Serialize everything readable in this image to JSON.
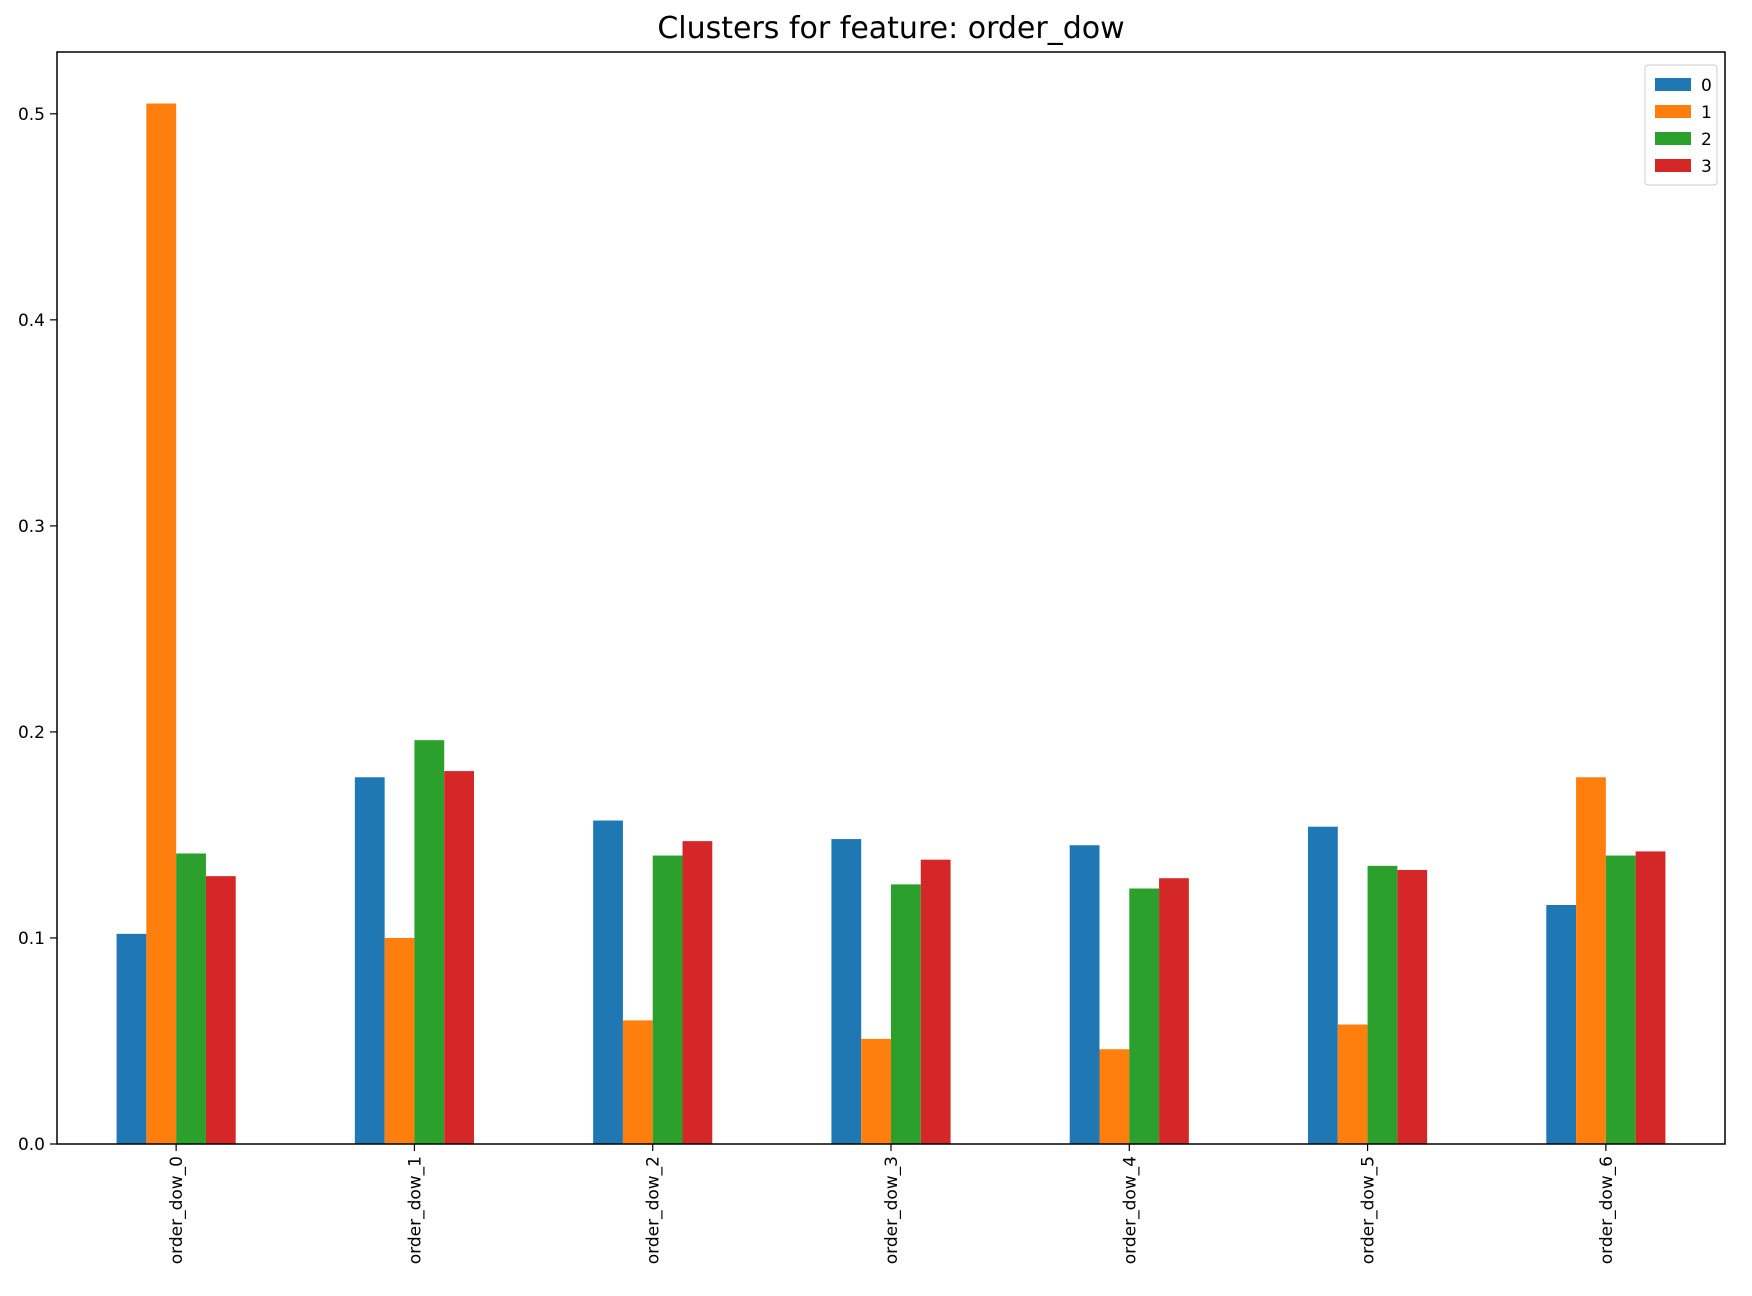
{
  "chart_data": {
    "type": "bar",
    "title": "Clusters for feature: order_dow",
    "xlabel": "",
    "ylabel": "",
    "categories": [
      "order_dow_0",
      "order_dow_1",
      "order_dow_2",
      "order_dow_3",
      "order_dow_4",
      "order_dow_5",
      "order_dow_6"
    ],
    "series": [
      {
        "name": "0",
        "color": "#1f77b4",
        "values": [
          0.102,
          0.178,
          0.157,
          0.148,
          0.145,
          0.154,
          0.116
        ]
      },
      {
        "name": "1",
        "color": "#ff7f0e",
        "values": [
          0.505,
          0.1,
          0.06,
          0.051,
          0.046,
          0.058,
          0.178
        ]
      },
      {
        "name": "2",
        "color": "#2ca02c",
        "values": [
          0.141,
          0.196,
          0.14,
          0.126,
          0.124,
          0.135,
          0.14
        ]
      },
      {
        "name": "3",
        "color": "#d62728",
        "values": [
          0.13,
          0.181,
          0.147,
          0.138,
          0.129,
          0.133,
          0.142
        ]
      }
    ],
    "ylim": [
      0,
      0.53
    ],
    "yticks": [
      0.0,
      0.1,
      0.2,
      0.3,
      0.4,
      0.5
    ],
    "ytick_labels": [
      "0.0",
      "0.1",
      "0.2",
      "0.3",
      "0.4",
      "0.5"
    ],
    "grid": false,
    "legend": "top-right"
  }
}
